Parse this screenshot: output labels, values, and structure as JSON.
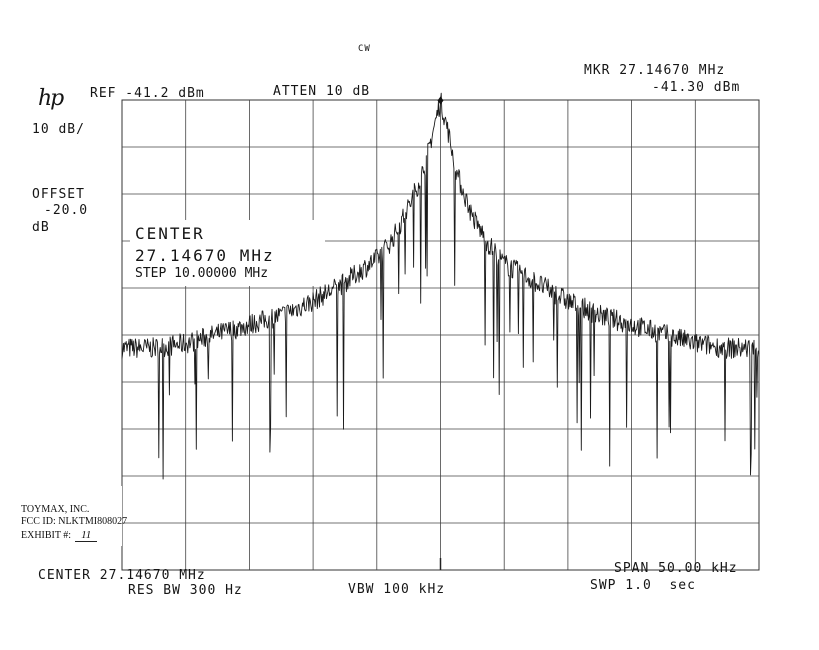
{
  "header": {
    "mode": "CW",
    "logo": "hp",
    "ref": "REF -41.2 dBm",
    "atten": "ATTEN 10 dB",
    "marker_freq": "MKR 27.14670 MHz",
    "marker_level": "-41.30 dBm",
    "scale": "10 dB/",
    "offset_label": "OFFSET",
    "offset_value": "-20.0",
    "offset_unit": "dB"
  },
  "center_box": {
    "title": "CENTER",
    "freq": "27.14670 MHz",
    "step": "STEP 10.00000 MHz"
  },
  "footer": {
    "center": "CENTER 27.14670 MHz",
    "res_bw": "RES BW 300 Hz",
    "vbw": "VBW 100 kHz",
    "span": "SPAN 50.00 kHz",
    "sweep": "SWP 1.0  sec"
  },
  "stamp": {
    "company": "TOYMAX, INC.",
    "fcc": "FCC ID:  NLKTMI808027",
    "exhibit_label": "EXHIBIT #:",
    "exhibit_value": "11"
  },
  "chart_data": {
    "type": "line",
    "ylabel": "",
    "xlabel": "",
    "center_mhz": 27.1467,
    "span_khz": 50.0,
    "x_unit": "kHz offset from center",
    "xlim": [
      -25,
      25
    ],
    "ylim": [
      -141.2,
      -41.2
    ],
    "y_unit": "dBm",
    "divisions": {
      "x": 10,
      "y": 10
    },
    "grid": true,
    "marker": {
      "x": 0.0,
      "y": -41.3
    },
    "series": [
      {
        "values_envelope": [
          [
            -25,
            -94
          ],
          [
            -22.5,
            -94
          ],
          [
            -20,
            -93
          ],
          [
            -17.5,
            -91
          ],
          [
            -15,
            -89
          ],
          [
            -12.5,
            -87
          ],
          [
            -10,
            -84
          ],
          [
            -7.5,
            -80
          ],
          [
            -5,
            -75
          ],
          [
            -3.8,
            -71
          ],
          [
            -2.5,
            -64
          ],
          [
            -1.3,
            -56
          ],
          [
            -0.6,
            -48
          ],
          [
            0,
            -41.3
          ],
          [
            0.6,
            -48
          ],
          [
            1.3,
            -57
          ],
          [
            2.5,
            -66
          ],
          [
            3.8,
            -72
          ],
          [
            5,
            -76
          ],
          [
            7.5,
            -80
          ],
          [
            10,
            -84
          ],
          [
            12.5,
            -87
          ],
          [
            15,
            -89
          ],
          [
            17.5,
            -91
          ],
          [
            20,
            -93
          ],
          [
            22.5,
            -94
          ],
          [
            25,
            -94
          ]
        ]
      }
    ]
  }
}
